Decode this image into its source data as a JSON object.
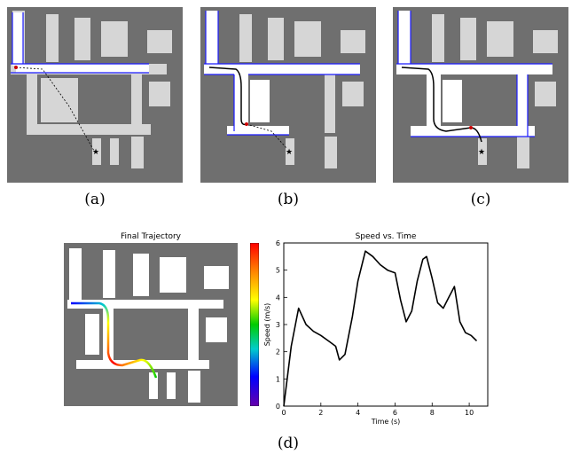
{
  "labels": {
    "a": "(a)",
    "b": "(b)",
    "c": "(c)",
    "d": "(d)"
  },
  "final_trajectory_title": "Final Trajectory",
  "colors": {
    "map_background": "#6f6f6f",
    "free_space": "#d6d6d6",
    "explored_free": "#ffffff",
    "frontier": "#1a1aff",
    "trajectory": "#000000",
    "goal_marker": "#000000",
    "robot_marker": "#cc0000"
  },
  "colorbar": {
    "colors": [
      "#ff0000",
      "#ff8800",
      "#ffff00",
      "#00cc00",
      "#00cccc",
      "#0000ff",
      "#6600aa"
    ]
  },
  "chart_data": {
    "type": "line",
    "title": "Speed vs. Time",
    "xlabel": "Time (s)",
    "ylabel": "Speed (m/s)",
    "xlim": [
      0,
      11
    ],
    "ylim": [
      0,
      6
    ],
    "xticks": [
      "0",
      "2",
      "4",
      "6",
      "8",
      "10"
    ],
    "yticks": [
      "0",
      "1",
      "2",
      "3",
      "4",
      "5",
      "6"
    ],
    "series": [
      {
        "x": [
          0,
          0.4,
          0.8,
          1.2,
          1.6,
          2.0,
          2.5,
          2.8,
          3.0,
          3.3,
          3.7,
          4.0,
          4.4,
          4.8,
          5.2,
          5.6,
          6.0,
          6.3,
          6.6,
          6.9,
          7.2,
          7.5,
          7.7,
          8.0,
          8.3,
          8.6,
          8.9,
          9.2,
          9.5,
          9.8,
          10.1,
          10.4
        ],
        "y": [
          0,
          2.2,
          3.6,
          3.0,
          2.75,
          2.6,
          2.35,
          2.2,
          1.7,
          1.9,
          3.3,
          4.6,
          5.7,
          5.5,
          5.2,
          5.0,
          4.9,
          3.9,
          3.1,
          3.5,
          4.6,
          5.4,
          5.5,
          4.7,
          3.8,
          3.6,
          4.0,
          4.4,
          3.1,
          2.7,
          2.6,
          2.4
        ]
      }
    ]
  }
}
